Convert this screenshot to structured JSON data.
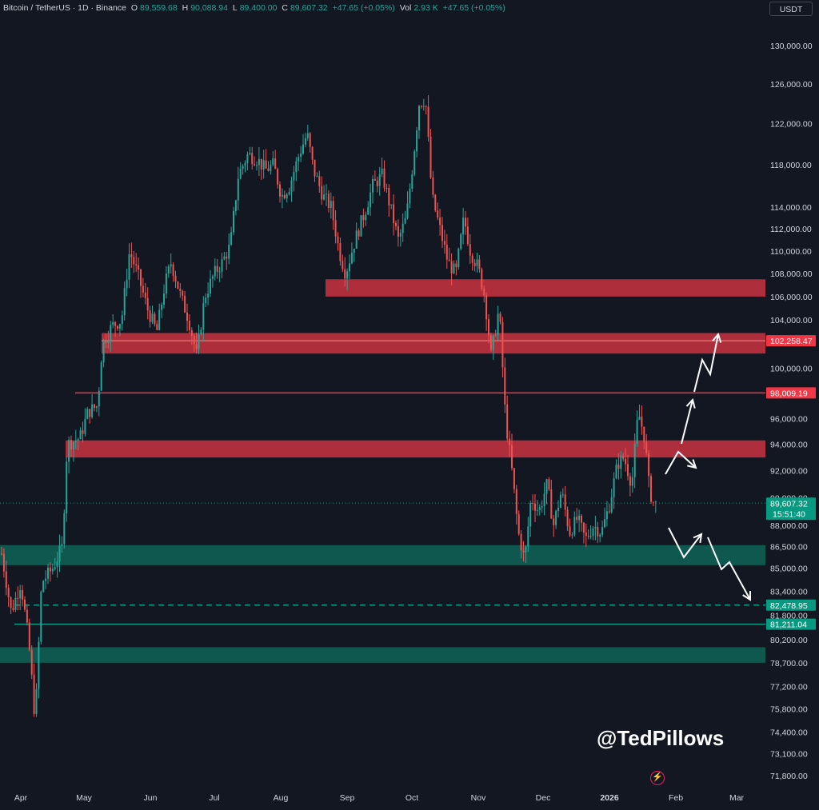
{
  "header": {
    "symbol": "Bitcoin / TetherUS · 1D · Binance",
    "open_label": "O",
    "open": "89,559.68",
    "high_label": "H",
    "high": "90,088.94",
    "low_label": "L",
    "low": "89,400.00",
    "close_label": "C",
    "close": "89,607.32",
    "change": "+47.65 (+0.05%)",
    "vol_label": "Vol",
    "vol": "2.93 K",
    "vol_change": "+47.65 (+0.05%)"
  },
  "currency_button": "USDT",
  "watermark": "@TedPillows",
  "colors": {
    "background": "#131722",
    "up": "#26a69a",
    "down": "#ef5350",
    "resistance_zone": "#c0313f",
    "support_zone": "#0f5c52",
    "arrow": "#ffffff"
  },
  "icons": {
    "bolt": "lightning-bolt-icon"
  },
  "chart_data": {
    "type": "candlestick",
    "y_scale": "log",
    "ylim": [
      71000,
      132000
    ],
    "y_ticks": [
      {
        "value": 130000,
        "label": "130,000.00"
      },
      {
        "value": 126000,
        "label": "126,000.00"
      },
      {
        "value": 122000,
        "label": "122,000.00"
      },
      {
        "value": 118000,
        "label": "118,000.00"
      },
      {
        "value": 114000,
        "label": "114,000.00"
      },
      {
        "value": 112000,
        "label": "112,000.00"
      },
      {
        "value": 110000,
        "label": "110,000.00"
      },
      {
        "value": 108000,
        "label": "108,000.00"
      },
      {
        "value": 106000,
        "label": "106,000.00"
      },
      {
        "value": 104000,
        "label": "104,000.00"
      },
      {
        "value": 100000,
        "label": "100,000.00"
      },
      {
        "value": 96000,
        "label": "96,000.00"
      },
      {
        "value": 94000,
        "label": "94,000.00"
      },
      {
        "value": 92000,
        "label": "92,000.00"
      },
      {
        "value": 90000,
        "label": "90,000.00"
      },
      {
        "value": 88000,
        "label": "88,000.00"
      },
      {
        "value": 86500,
        "label": "86,500.00"
      },
      {
        "value": 85000,
        "label": "85,000.00"
      },
      {
        "value": 83400,
        "label": "83,400.00"
      },
      {
        "value": 81800,
        "label": "81,800.00"
      },
      {
        "value": 80200,
        "label": "80,200.00"
      },
      {
        "value": 78700,
        "label": "78,700.00"
      },
      {
        "value": 77200,
        "label": "77,200.00"
      },
      {
        "value": 75800,
        "label": "75,800.00"
      },
      {
        "value": 74400,
        "label": "74,400.00"
      },
      {
        "value": 73100,
        "label": "73,100.00"
      },
      {
        "value": 71800,
        "label": "71,800.00"
      }
    ],
    "x_ticks": [
      "Apr",
      "May",
      "Jun",
      "Jul",
      "Aug",
      "Sep",
      "Oct",
      "Nov",
      "Dec",
      "2026",
      "Feb",
      "Mar"
    ],
    "price_tags": [
      {
        "value": 102258.47,
        "label": "102,258.47",
        "color": "#f23645"
      },
      {
        "value": 98009.19,
        "label": "98,009.19",
        "color": "#f23645"
      },
      {
        "value": 89607.32,
        "label": "89,607.32",
        "sub": "15:51:40",
        "color": "#089981"
      },
      {
        "value": 82478.95,
        "label": "82,478.95",
        "color": "#089981"
      },
      {
        "value": 81211.04,
        "label": "81,211.04",
        "color": "#089981"
      }
    ],
    "resistance_zones": [
      [
        106000,
        107500
      ],
      [
        101200,
        102900
      ],
      [
        93000,
        94300
      ]
    ],
    "support_zones": [
      [
        85200,
        86600
      ],
      [
        78700,
        79700
      ]
    ],
    "resistance_line": 98009.19,
    "support_line": 81211.04,
    "support_dashed_line": 82478.95,
    "key_prices": [
      {
        "month": "Apr",
        "price": 85000
      },
      {
        "month": "Apr",
        "price": 75000
      },
      {
        "month": "May",
        "price": 97000
      },
      {
        "month": "Jun",
        "price": 110000
      },
      {
        "month": "Jul",
        "price": 120000
      },
      {
        "month": "Aug",
        "price": 124000
      },
      {
        "month": "Sep",
        "price": 108000
      },
      {
        "month": "Oct",
        "price": 126000
      },
      {
        "month": "Nov",
        "price": 82000
      },
      {
        "month": "Dec",
        "price": 86000
      },
      {
        "month": "2026",
        "price": 97000
      },
      {
        "month": "2026",
        "price": 89607.32
      }
    ]
  }
}
